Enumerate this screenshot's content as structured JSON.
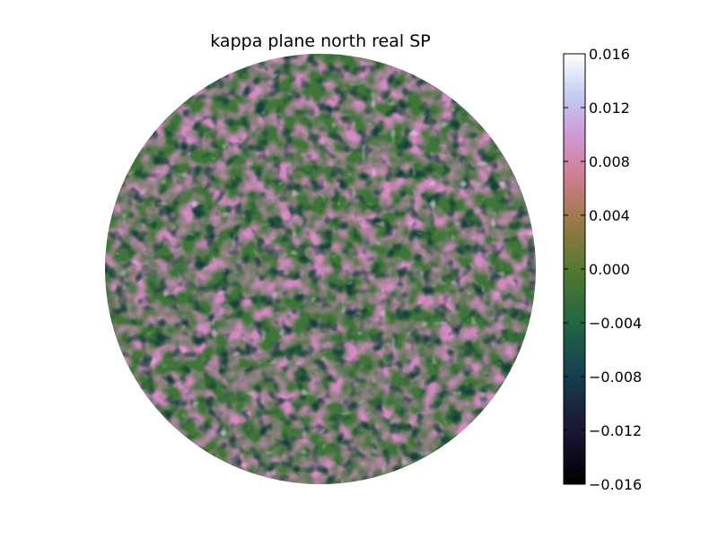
{
  "chart_data": {
    "type": "heatmap",
    "title": "kappa plane north real SP",
    "projection": "disk",
    "colormap": "cubehelix",
    "colorbar": {
      "vmin": -0.016,
      "vmax": 0.016,
      "ticks": [
        0.016,
        0.012,
        0.008,
        0.004,
        0.0,
        -0.004,
        -0.008,
        -0.012,
        -0.016
      ],
      "tick_labels": [
        "0.016",
        "0.012",
        "0.008",
        "0.004",
        "0.000",
        "−0.004",
        "−0.008",
        "−0.012",
        "−0.016"
      ],
      "placement": "right"
    },
    "field_description": "random fluctuation field, values mostly between -0.008 and 0.010"
  }
}
